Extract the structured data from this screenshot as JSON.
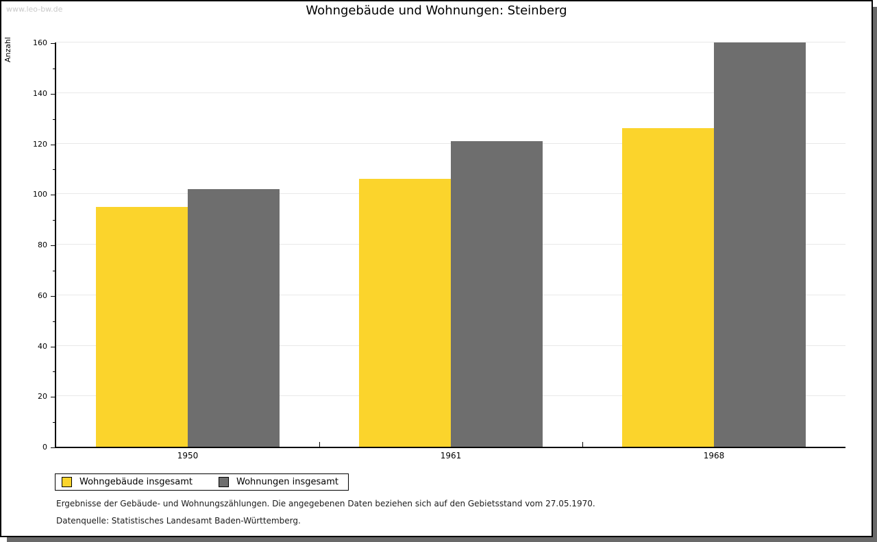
{
  "watermark": "www.leo-bw.de",
  "title": "Wohngebäude und Wohnungen: Steinberg",
  "chart_data": {
    "type": "bar",
    "title": "Wohngebäude und Wohnungen: Steinberg",
    "categories": [
      "1950",
      "1961",
      "1968"
    ],
    "series": [
      {
        "name": "Wohngebäude insgesamt",
        "color": "#FBD42C",
        "values": [
          95,
          106,
          126
        ]
      },
      {
        "name": "Wohnungen insgesamt",
        "color": "#6E6E6E",
        "values": [
          102,
          121,
          160
        ]
      }
    ],
    "xlabel": "",
    "ylabel": "Anzahl",
    "ylim": [
      0,
      160
    ],
    "ytick_step": 20,
    "ytick_minor_step": 10,
    "grid": true,
    "gridline_color": "#e8e8e8",
    "legend_position": "bottom-left"
  },
  "footnotes": [
    "Ergebnisse der Gebäude- und Wohnungszählungen. Die angegebenen Daten beziehen sich auf den Gebietsstand vom 27.05.1970.",
    "Datenquelle: Statistisches Landesamt Baden-Württemberg."
  ],
  "colors": {
    "series_yellow": "#FBD42C",
    "series_gray": "#6E6E6E",
    "watermark_gray": "#C9C9C9",
    "frame_shadow": "#696969"
  }
}
